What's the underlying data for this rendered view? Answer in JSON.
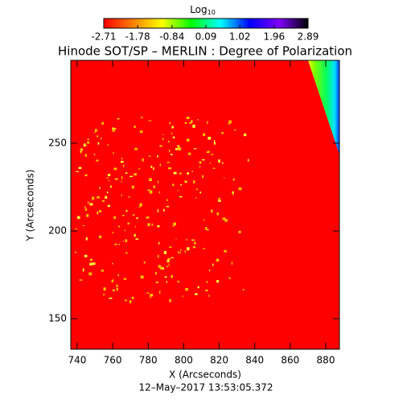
{
  "chart_data": {
    "type": "image",
    "title": "Hinode SOT/SP – MERLIN : Degree of Polarization",
    "xlabel": "X (Arcseconds)",
    "ylabel": "Y (Arcseconds)",
    "footer": "12–May–2017 13:53:05.372",
    "xlim": [
      736.4,
      887.7
    ],
    "xticks": [
      740,
      760,
      780,
      800,
      820,
      840,
      860,
      880
    ],
    "ylim": [
      132.6,
      297.2
    ],
    "yticks": [
      150,
      200,
      250
    ],
    "colorbar_label": "Log",
    "colorbar_label_sub": "10",
    "clim": [
      -2.71,
      2.89
    ],
    "cticks": [
      -2.71,
      -1.78,
      -0.84,
      0.09,
      1.02,
      1.96,
      2.89
    ],
    "colormap": [
      "#ff0000",
      "#ff8000",
      "#ffff00",
      "#00ff00",
      "#00ffff",
      "#0000ff",
      "#8000ff",
      "#000000"
    ]
  }
}
